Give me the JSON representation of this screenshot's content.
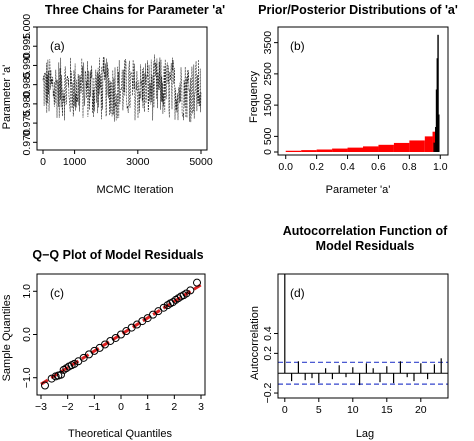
{
  "chart_data": [
    {
      "panel": "(a)",
      "type": "line",
      "title": "Three Chains for Parameter 'a'",
      "xlabel": "MCMC Iteration",
      "ylabel": "Parameter 'a'",
      "xlim": [
        0,
        5000
      ],
      "ylim": [
        0.968,
        1.0
      ],
      "xticks": [
        "0",
        "1000",
        "3000",
        "5000"
      ],
      "yticks": [
        "0.970",
        "0.975",
        "0.980",
        "0.985",
        "0.990",
        "0.995",
        "1.000"
      ],
      "series": [
        {
          "values_summary": {
            "mean": 0.984,
            "min": 0.975,
            "max": 0.993,
            "n": 5000,
            "chains": 3
          }
        }
      ]
    },
    {
      "panel": "(b)",
      "type": "bar",
      "title": "Prior/Posterior Distributions of 'a'",
      "xlabel": "Parameter 'a'",
      "ylabel": "Frequency",
      "xlim": [
        0.0,
        1.0
      ],
      "ylim": [
        0,
        4000
      ],
      "xticks": [
        "0.0",
        "0.2",
        "0.4",
        "0.6",
        "0.8",
        "1.0"
      ],
      "yticks": [
        "0",
        "500",
        "1500",
        "2500",
        "3500"
      ],
      "series": [
        {
          "color": "#ff0000",
          "x": [
            0.0,
            0.1,
            0.2,
            0.3,
            0.4,
            0.5,
            0.6,
            0.7,
            0.8,
            0.9,
            0.95
          ],
          "values": [
            40,
            60,
            80,
            110,
            140,
            180,
            230,
            290,
            370,
            500,
            650
          ]
        },
        {
          "color": "#000000",
          "x": [
            0.96,
            0.97,
            0.975,
            0.98,
            0.985,
            0.99
          ],
          "values": [
            300,
            800,
            2000,
            3000,
            3750,
            1200
          ]
        }
      ]
    },
    {
      "panel": "(c)",
      "type": "scatter",
      "title": "Q−Q Plot of Model Residuals",
      "xlabel": "Theoretical Quantiles",
      "ylabel": "Sample Quantiles",
      "xlim": [
        -3,
        3
      ],
      "ylim": [
        -1.4,
        1.4
      ],
      "xticks": [
        "−3",
        "−2",
        "−1",
        "0",
        "1",
        "2",
        "3"
      ],
      "yticks": [
        "−1.0",
        "0.0",
        "1.0"
      ],
      "reference_line": {
        "color": "#dd2222",
        "x": [
          -3,
          3
        ],
        "y": [
          -1.15,
          1.15
        ]
      },
      "points": {
        "x": [
          -2.85,
          -2.6,
          -2.45,
          -2.35,
          -2.25,
          -2.15,
          -2.05,
          -1.95,
          -1.85,
          -1.75,
          -1.6,
          -1.4,
          -1.2,
          -1.0,
          -0.8,
          -0.6,
          -0.4,
          -0.2,
          0.0,
          0.2,
          0.4,
          0.6,
          0.8,
          1.0,
          1.2,
          1.4,
          1.6,
          1.75,
          1.85,
          1.95,
          2.05,
          2.15,
          2.25,
          2.35,
          2.45,
          2.6,
          2.85
        ],
        "y": [
          -1.18,
          -1.02,
          -0.97,
          -0.95,
          -0.93,
          -0.82,
          -0.78,
          -0.74,
          -0.71,
          -0.68,
          -0.62,
          -0.54,
          -0.46,
          -0.38,
          -0.31,
          -0.23,
          -0.15,
          -0.08,
          0.0,
          0.08,
          0.16,
          0.23,
          0.31,
          0.38,
          0.46,
          0.54,
          0.62,
          0.68,
          0.72,
          0.75,
          0.8,
          0.84,
          0.88,
          0.91,
          0.95,
          1.02,
          1.2
        ]
      }
    },
    {
      "panel": "(d)",
      "type": "bar",
      "title": "Autocorrelation Function of Model Residuals",
      "title_lines": [
        "Autocorrelation Function of",
        "Model Residuals"
      ],
      "xlabel": "Lag",
      "ylabel": "Autocorrelation",
      "xlim": [
        -1,
        24
      ],
      "ylim": [
        -0.25,
        1.0
      ],
      "xticks": [
        "0",
        "5",
        "10",
        "15",
        "20"
      ],
      "yticks": [
        "−0.2",
        "0.2",
        "0.4"
      ],
      "confidence_band": {
        "color": "#3344cc",
        "upper": 0.11,
        "lower": -0.11
      },
      "lags": [
        0,
        1,
        2,
        3,
        4,
        5,
        6,
        7,
        8,
        9,
        10,
        11,
        12,
        13,
        14,
        15,
        16,
        17,
        18,
        19,
        20,
        21,
        22,
        23
      ],
      "values": [
        1.0,
        -0.08,
        0.12,
        -0.07,
        -0.05,
        -0.1,
        0.05,
        -0.06,
        0.08,
        -0.04,
        0.06,
        -0.12,
        0.1,
        0.05,
        -0.09,
        0.07,
        -0.1,
        0.12,
        -0.04,
        -0.08,
        0.1,
        -0.06,
        0.09,
        0.15
      ]
    }
  ]
}
